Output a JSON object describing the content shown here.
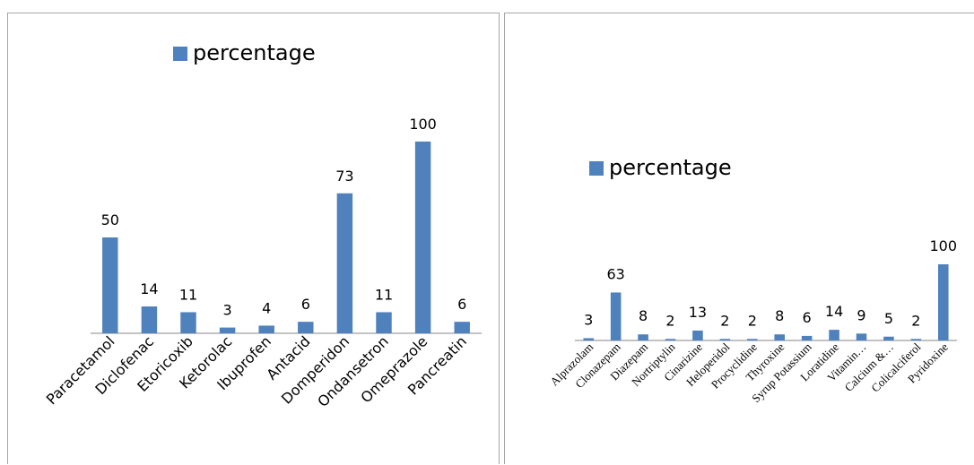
{
  "chart_data": [
    {
      "type": "bar",
      "categories": [
        "Paracetamol",
        "Diclofenac",
        "Etoricoxib",
        "Ketorolac",
        "Ibuprofen",
        "Antacid",
        "Domperidon",
        "Ondansetron",
        "Omeprazole",
        "Pancreatin"
      ],
      "series": [
        {
          "name": "percentage",
          "values": [
            50,
            14,
            11,
            3,
            4,
            6,
            73,
            11,
            100,
            6
          ]
        }
      ],
      "data_labels": true,
      "legend": "top-center",
      "ylim": [
        0,
        100
      ],
      "grid": false,
      "bar_color": "#4f81bd"
    },
    {
      "type": "bar",
      "categories": [
        "Alprazolam",
        "Clonazepam",
        "Diazepam",
        "Nortriptylin",
        "Cinarizine",
        "Heloperidol",
        "Procyclidine",
        "Thyroxine",
        "Syrup Potassium",
        "Loratidine",
        "Vitamin…",
        "Calcium &…",
        "Colicalciferol",
        "Pyridoxine"
      ],
      "series": [
        {
          "name": "percentage",
          "values": [
            3,
            63,
            8,
            2,
            13,
            2,
            2,
            8,
            6,
            14,
            9,
            5,
            2,
            100
          ]
        }
      ],
      "data_labels": true,
      "legend": "top-center",
      "ylim": [
        0,
        100
      ],
      "grid": false,
      "bar_color": "#4f81bd"
    }
  ]
}
